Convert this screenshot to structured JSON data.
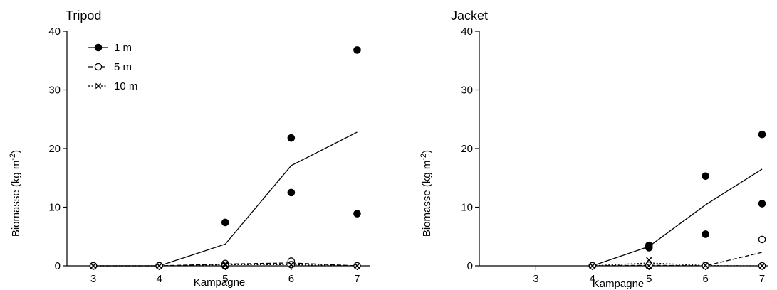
{
  "chart_data": [
    {
      "type": "scatter",
      "title": "Tripod",
      "xlabel": "Kampagne",
      "ylabel": "Biomasse (kg m",
      "ylabel_sup": "-2",
      "ylabel_close": ")",
      "x_ticks": [
        3,
        4,
        5,
        6,
        7
      ],
      "xlim": [
        2.6,
        7.2
      ],
      "y_ticks": [
        0,
        10,
        20,
        30,
        40
      ],
      "ylim": [
        0,
        40
      ],
      "legend": {
        "position": "top-left"
      },
      "series": [
        {
          "name": "1 m",
          "marker": "filled-circle",
          "line_style": "solid",
          "points": [
            {
              "x": 3,
              "y": 0
            },
            {
              "x": 3,
              "y": 0
            },
            {
              "x": 4,
              "y": 0
            },
            {
              "x": 4,
              "y": 0
            },
            {
              "x": 5,
              "y": 7.4
            },
            {
              "x": 5,
              "y": 0
            },
            {
              "x": 6,
              "y": 21.8
            },
            {
              "x": 6,
              "y": 12.5
            },
            {
              "x": 7,
              "y": 36.8
            },
            {
              "x": 7,
              "y": 8.9
            }
          ],
          "mean_line": [
            {
              "x": 3,
              "y": 0
            },
            {
              "x": 4,
              "y": 0
            },
            {
              "x": 5,
              "y": 3.7
            },
            {
              "x": 6,
              "y": 17.1
            },
            {
              "x": 7,
              "y": 22.8
            }
          ]
        },
        {
          "name": "5 m",
          "marker": "open-circle",
          "line_style": "dashed",
          "points": [
            {
              "x": 3,
              "y": 0
            },
            {
              "x": 4,
              "y": 0
            },
            {
              "x": 5,
              "y": 0.4
            },
            {
              "x": 5,
              "y": 0.1
            },
            {
              "x": 6,
              "y": 0.8
            },
            {
              "x": 6,
              "y": 0.2
            },
            {
              "x": 7,
              "y": 0
            }
          ],
          "mean_line": [
            {
              "x": 3,
              "y": 0
            },
            {
              "x": 4,
              "y": 0
            },
            {
              "x": 5,
              "y": 0.3
            },
            {
              "x": 6,
              "y": 0.5
            },
            {
              "x": 7,
              "y": 0
            }
          ]
        },
        {
          "name": "10 m",
          "marker": "cross",
          "line_style": "dotted",
          "points": [
            {
              "x": 3,
              "y": 0
            },
            {
              "x": 4,
              "y": 0
            },
            {
              "x": 5,
              "y": 0.3
            },
            {
              "x": 5,
              "y": 0.1
            },
            {
              "x": 6,
              "y": 0.2
            },
            {
              "x": 7,
              "y": 0
            }
          ],
          "mean_line": [
            {
              "x": 3,
              "y": 0
            },
            {
              "x": 4,
              "y": 0
            },
            {
              "x": 5,
              "y": 0.2
            },
            {
              "x": 6,
              "y": 0.2
            },
            {
              "x": 7,
              "y": 0
            }
          ]
        }
      ]
    },
    {
      "type": "scatter",
      "title": "Jacket",
      "xlabel": "Kampagne",
      "ylabel": "Biomasse (kg m",
      "ylabel_sup": "-2",
      "ylabel_close": ")",
      "x_ticks": [
        3,
        4,
        5,
        6,
        7
      ],
      "xlim": [
        2.0,
        7.1
      ],
      "y_ticks": [
        0,
        10,
        20,
        30,
        40
      ],
      "ylim": [
        0,
        40
      ],
      "series": [
        {
          "name": "1 m",
          "marker": "filled-circle",
          "line_style": "solid",
          "points": [
            {
              "x": 4,
              "y": 0
            },
            {
              "x": 4,
              "y": 0
            },
            {
              "x": 5,
              "y": 3.5
            },
            {
              "x": 5,
              "y": 3.1
            },
            {
              "x": 6,
              "y": 15.3
            },
            {
              "x": 6,
              "y": 5.4
            },
            {
              "x": 7,
              "y": 22.4
            },
            {
              "x": 7,
              "y": 10.6
            }
          ],
          "mean_line": [
            {
              "x": 4,
              "y": 0
            },
            {
              "x": 5,
              "y": 3.3
            },
            {
              "x": 6,
              "y": 10.4
            },
            {
              "x": 7,
              "y": 16.5
            }
          ]
        },
        {
          "name": "5 m",
          "marker": "open-circle",
          "line_style": "dashed",
          "points": [
            {
              "x": 4,
              "y": 0
            },
            {
              "x": 5,
              "y": 0
            },
            {
              "x": 5,
              "y": 0.1
            },
            {
              "x": 6,
              "y": 0
            },
            {
              "x": 7,
              "y": 4.5
            },
            {
              "x": 7,
              "y": 0
            }
          ],
          "mean_line": [
            {
              "x": 4,
              "y": 0
            },
            {
              "x": 5,
              "y": 0.1
            },
            {
              "x": 6,
              "y": 0
            },
            {
              "x": 7,
              "y": 2.3
            }
          ]
        },
        {
          "name": "10 m",
          "marker": "cross",
          "line_style": "dotted",
          "points": [
            {
              "x": 4,
              "y": 0
            },
            {
              "x": 5,
              "y": 1.0
            },
            {
              "x": 5,
              "y": 0
            },
            {
              "x": 6,
              "y": 0.1
            },
            {
              "x": 7,
              "y": 0
            }
          ],
          "mean_line": [
            {
              "x": 4,
              "y": 0
            },
            {
              "x": 5,
              "y": 0.5
            },
            {
              "x": 6,
              "y": 0.05
            },
            {
              "x": 7,
              "y": 0
            }
          ]
        }
      ]
    }
  ]
}
